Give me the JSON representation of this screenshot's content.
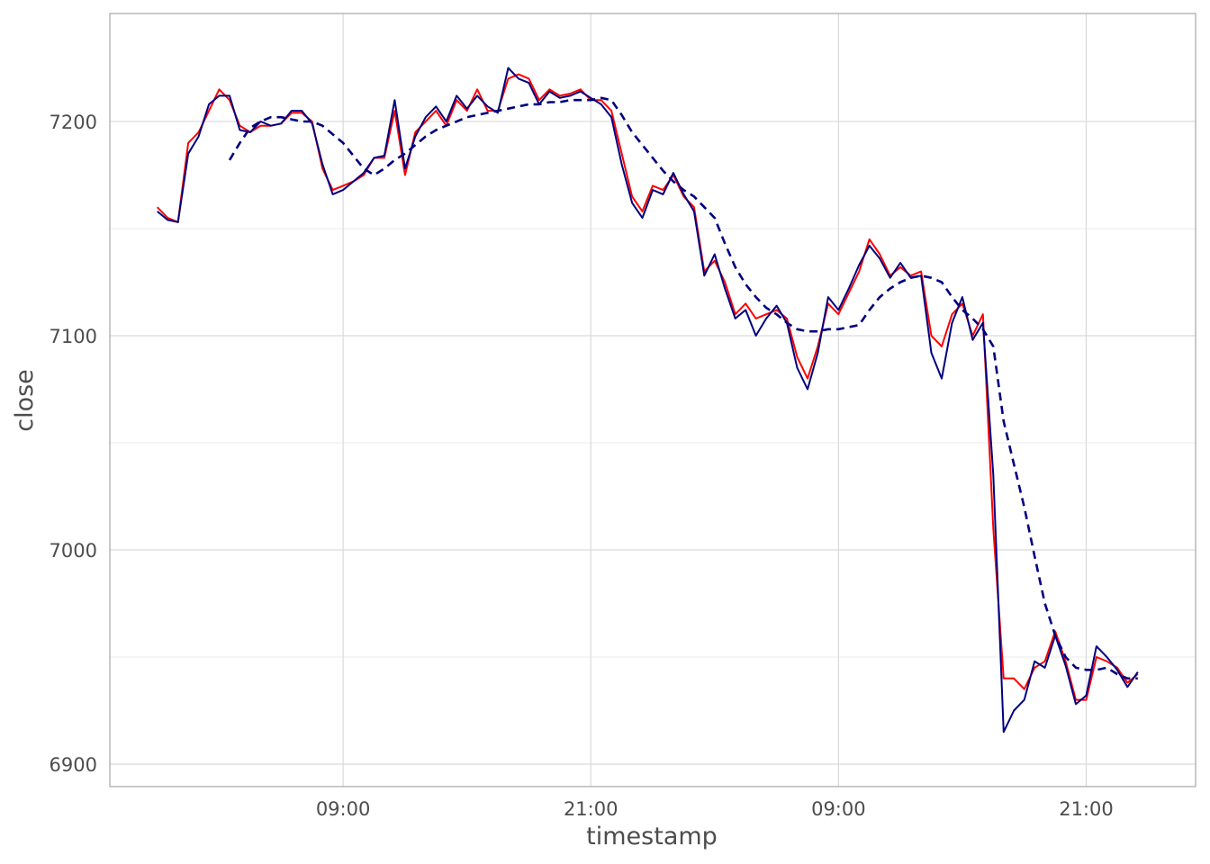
{
  "chart_data": {
    "type": "line",
    "x_label": "timestamp",
    "y_label": "close",
    "x": [
      0,
      0.5,
      1,
      1.5,
      2,
      2.5,
      3,
      3.5,
      4,
      4.5,
      5,
      5.5,
      6,
      6.5,
      7,
      7.5,
      8,
      8.5,
      9,
      9.5,
      10,
      10.5,
      11,
      11.5,
      12,
      12.5,
      13,
      13.5,
      14,
      14.5,
      15,
      15.5,
      16,
      16.5,
      17,
      17.5,
      18,
      18.5,
      19,
      19.5,
      20,
      20.5,
      21,
      21.5,
      22,
      22.5,
      23,
      23.5,
      24,
      24.5,
      25,
      25.5,
      26,
      26.5,
      27,
      27.5,
      28,
      28.5,
      29,
      29.5,
      30,
      30.5,
      31,
      31.5,
      32,
      32.5,
      33,
      33.5,
      34,
      34.5,
      35,
      35.5,
      36,
      36.5,
      37,
      37.5,
      38,
      38.5,
      39,
      39.5,
      40,
      40.5,
      41,
      41.5,
      42,
      42.5,
      43,
      43.5,
      44,
      44.5,
      45,
      45.5,
      46,
      46.5,
      47,
      47.5
    ],
    "series": [
      {
        "color": "#ff0000",
        "dashed": false,
        "values": [
          7160,
          7155,
          7153,
          7190,
          7195,
          7205,
          7215,
          7210,
          7198,
          7195,
          7198,
          7198,
          7199,
          7204,
          7204,
          7200,
          7178,
          7168,
          7170,
          7172,
          7175,
          7183,
          7183,
          7205,
          7175,
          7195,
          7200,
          7205,
          7198,
          7210,
          7205,
          7215,
          7205,
          7205,
          7220,
          7222,
          7220,
          7210,
          7215,
          7212,
          7213,
          7215,
          7210,
          7210,
          7205,
          7185,
          7165,
          7158,
          7170,
          7168,
          7175,
          7165,
          7160,
          7130,
          7135,
          7125,
          7110,
          7115,
          7108,
          7110,
          7112,
          7108,
          7090,
          7080,
          7095,
          7115,
          7110,
          7120,
          7130,
          7145,
          7138,
          7128,
          7132,
          7128,
          7130,
          7100,
          7095,
          7110,
          7115,
          7100,
          7110,
          7010,
          6940,
          6940,
          6935,
          6945,
          6948,
          6962,
          6948,
          6930,
          6930,
          6950,
          6948,
          6945,
          6938,
          6942
        ]
      },
      {
        "color": "#000080",
        "dashed": false,
        "values": [
          7158,
          7154,
          7153,
          7185,
          7193,
          7208,
          7212,
          7212,
          7196,
          7195,
          7200,
          7198,
          7199,
          7205,
          7205,
          7199,
          7180,
          7166,
          7168,
          7172,
          7176,
          7183,
          7184,
          7210,
          7178,
          7193,
          7202,
          7207,
          7200,
          7212,
          7206,
          7212,
          7207,
          7204,
          7225,
          7220,
          7218,
          7208,
          7214,
          7211,
          7212,
          7214,
          7211,
          7208,
          7202,
          7180,
          7162,
          7155,
          7168,
          7166,
          7176,
          7166,
          7158,
          7128,
          7138,
          7122,
          7108,
          7112,
          7100,
          7108,
          7114,
          7106,
          7085,
          7075,
          7092,
          7118,
          7112,
          7122,
          7133,
          7142,
          7136,
          7127,
          7134,
          7127,
          7128,
          7092,
          7080,
          7106,
          7118,
          7098,
          7106,
          7035,
          6915,
          6925,
          6930,
          6948,
          6945,
          6960,
          6946,
          6928,
          6932,
          6955,
          6950,
          6944,
          6936,
          6943
        ]
      },
      {
        "color": "#000080",
        "dashed": true,
        "values": [
          null,
          null,
          null,
          null,
          null,
          null,
          null,
          7182,
          7190,
          7197,
          7200,
          7202,
          7202,
          7201,
          7200,
          7200,
          7198,
          7194,
          7190,
          7184,
          7178,
          7175,
          7178,
          7182,
          7185,
          7189,
          7193,
          7196,
          7198,
          7200,
          7202,
          7203,
          7204,
          7205,
          7206,
          7207,
          7208,
          7208,
          7209,
          7209,
          7210,
          7210,
          7210,
          7211,
          7210,
          7203,
          7195,
          7189,
          7183,
          7177,
          7172,
          7168,
          7165,
          7160,
          7155,
          7143,
          7132,
          7124,
          7118,
          7113,
          7110,
          7106,
          7103,
          7102,
          7102,
          7103,
          7103,
          7104,
          7105,
          7112,
          7118,
          7122,
          7125,
          7127,
          7128,
          7127,
          7125,
          7118,
          7112,
          7108,
          7103,
          7095,
          7060,
          7040,
          7020,
          6997,
          6975,
          6960,
          6950,
          6945,
          6944,
          6944,
          6945,
          6942,
          6940,
          6940
        ]
      }
    ],
    "xlim": [
      -2.3,
      50.3
    ],
    "xticks": [
      {
        "value": 9,
        "label": "09:00"
      },
      {
        "value": 21,
        "label": "21:00"
      },
      {
        "value": 33,
        "label": "09:00"
      },
      {
        "value": 45,
        "label": "21:00"
      }
    ],
    "ylim": [
      6889.5,
      7250.4
    ],
    "yticks": [
      6900,
      7000,
      7100,
      7200
    ],
    "y_minor_ticks": [
      6950,
      7050,
      7150
    ],
    "grid": true
  }
}
